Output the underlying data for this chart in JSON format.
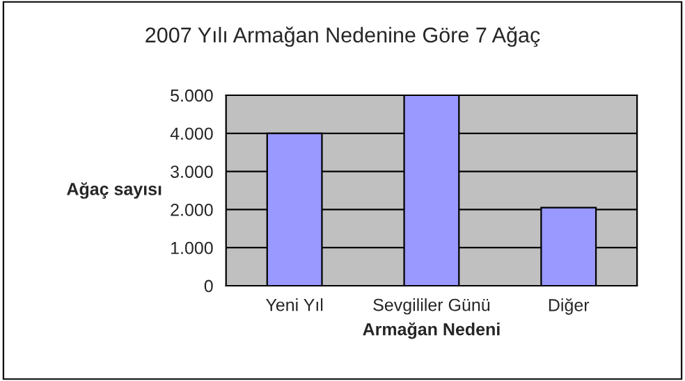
{
  "chart_data": {
    "type": "bar",
    "title": "2007 Yılı Armağan Nedenine Göre 7 Ağaç",
    "xlabel": "Armağan Nedeni",
    "ylabel": "Ağaç sayısı",
    "categories": [
      "Yeni Yıl",
      "Sevgililer Günü",
      "Diğer"
    ],
    "values": [
      4000,
      5000,
      2050
    ],
    "color": "#9999ff",
    "ylim": [
      0,
      5000
    ],
    "yticks": [
      0,
      {
        "value": 1000,
        "label": "1.000"
      },
      {
        "value": 2000,
        "label": "2.000"
      },
      {
        "value": 3000,
        "label": "3.000"
      },
      {
        "value": 4000,
        "label": "4.000"
      },
      {
        "value": 5000,
        "label": "5.000"
      }
    ],
    "grid": "y",
    "legend": false
  }
}
